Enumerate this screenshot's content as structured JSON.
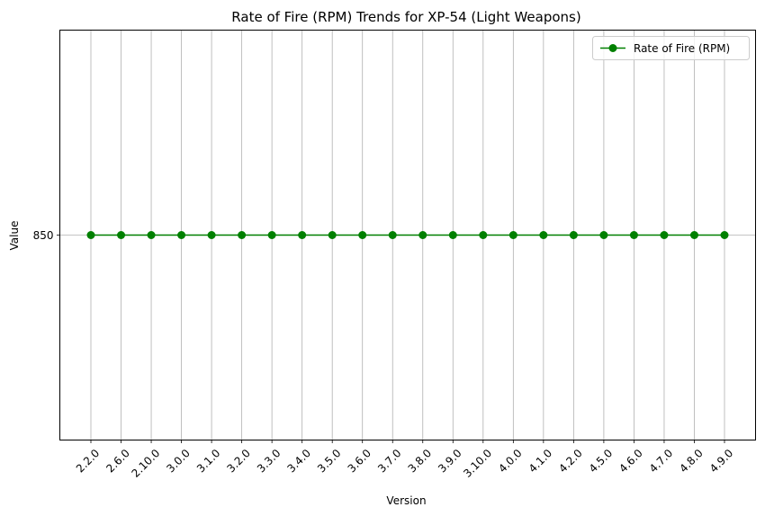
{
  "chart_data": {
    "type": "line",
    "title": "Rate of Fire (RPM) Trends for XP-54 (Light Weapons)",
    "xlabel": "Version",
    "ylabel": "Value",
    "categories": [
      "2.2.0",
      "2.6.0",
      "2.10.0",
      "3.0.0",
      "3.1.0",
      "3.2.0",
      "3.3.0",
      "3.4.0",
      "3.5.0",
      "3.6.0",
      "3.7.0",
      "3.8.0",
      "3.9.0",
      "3.10.0",
      "4.0.0",
      "4.1.0",
      "4.2.0",
      "4.5.0",
      "4.6.0",
      "4.7.0",
      "4.8.0",
      "4.9.0"
    ],
    "series": [
      {
        "name": "Rate of Fire (RPM)",
        "color": "#008000",
        "marker": "circle",
        "values": [
          850,
          850,
          850,
          850,
          850,
          850,
          850,
          850,
          850,
          850,
          850,
          850,
          850,
          850,
          850,
          850,
          850,
          850,
          850,
          850,
          850,
          850
        ]
      }
    ],
    "yticks": [
      850
    ],
    "ytick_labels": [
      "850"
    ],
    "ylim": [
      849.5,
      850.5
    ],
    "grid": true,
    "legend_position": "top-right"
  }
}
